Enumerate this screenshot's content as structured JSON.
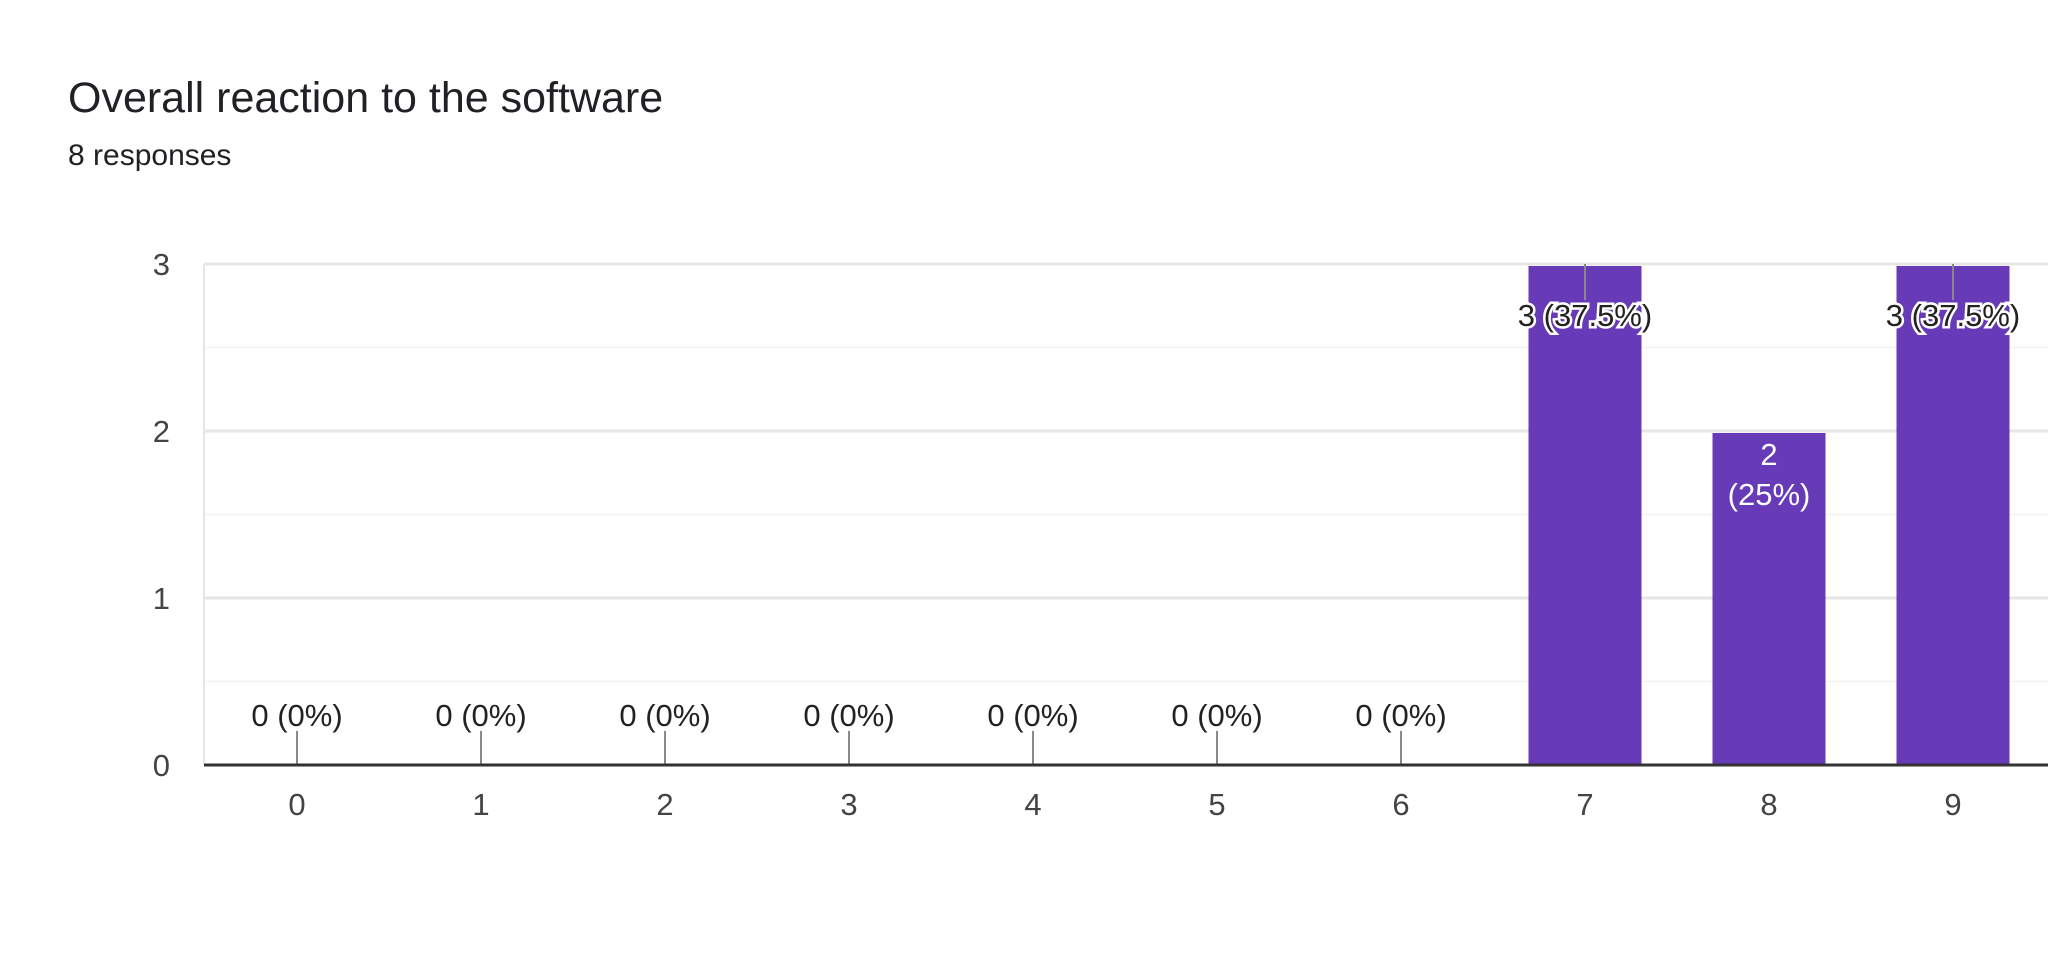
{
  "header": {
    "title": "Overall reaction to the software",
    "responses": "8 responses"
  },
  "colors": {
    "bar": "#673ab7",
    "axis": "#333333",
    "grid_major": "#e6e6e6",
    "grid_minor": "#f4f4f4",
    "tick_text": "#444444",
    "label_dark": "#222222",
    "label_light": "#ffffff"
  },
  "chart_data": {
    "type": "bar",
    "title": "Overall reaction to the software",
    "subtitle": "8 responses",
    "xlabel": "",
    "ylabel": "",
    "categories": [
      "0",
      "1",
      "2",
      "3",
      "4",
      "5",
      "6",
      "7",
      "8",
      "9"
    ],
    "values": [
      0,
      0,
      0,
      0,
      0,
      0,
      0,
      3,
      2,
      3
    ],
    "data_labels": [
      "0 (0%)",
      "0 (0%)",
      "0 (0%)",
      "0 (0%)",
      "0 (0%)",
      "0 (0%)",
      "0 (0%)",
      "3 (37.5%)",
      "2 (25%)",
      "3 (37.5%)"
    ],
    "yticks": [
      "0",
      "1",
      "2",
      "3"
    ],
    "ylim": [
      0,
      3
    ],
    "grid": true
  }
}
